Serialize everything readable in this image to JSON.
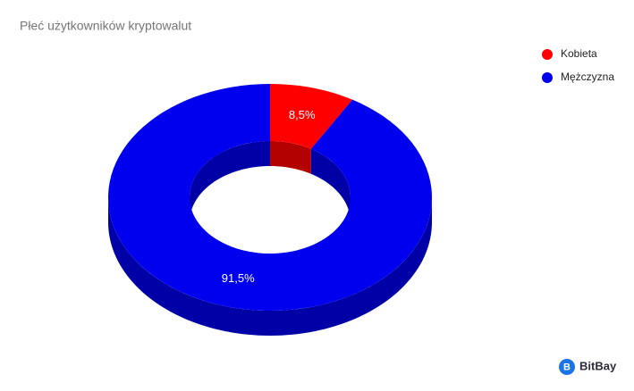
{
  "chart_data": {
    "type": "donut3d",
    "title": "Płeć użytkowników kryptowalut",
    "categories": [
      "Kobieta",
      "Mężczyzna"
    ],
    "values": [
      8.5,
      91.5
    ],
    "value_labels": [
      "8,5%",
      "91,5%"
    ],
    "colors": [
      "#ff0000",
      "#0000ee"
    ],
    "legend": "right"
  },
  "brand": "BitBay"
}
